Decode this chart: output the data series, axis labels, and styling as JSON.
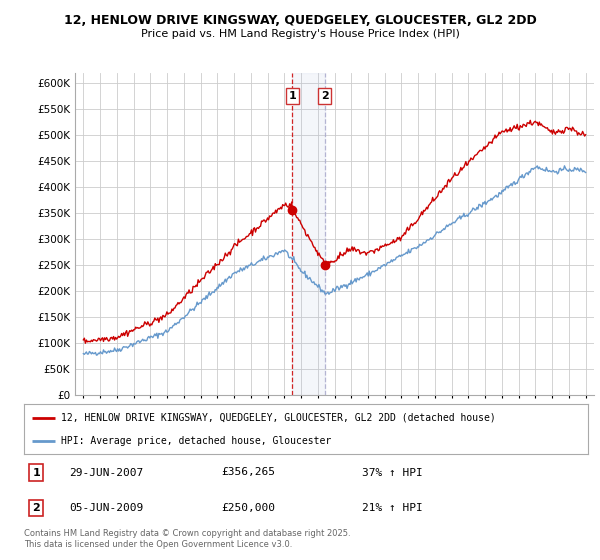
{
  "title1": "12, HENLOW DRIVE KINGSWAY, QUEDGELEY, GLOUCESTER, GL2 2DD",
  "title2": "Price paid vs. HM Land Registry's House Price Index (HPI)",
  "legend_line1": "12, HENLOW DRIVE KINGSWAY, QUEDGELEY, GLOUCESTER, GL2 2DD (detached house)",
  "legend_line2": "HPI: Average price, detached house, Gloucester",
  "transaction1_date": "29-JUN-2007",
  "transaction1_price": "£356,265",
  "transaction1_hpi": "37% ↑ HPI",
  "transaction1_year": 2007.49,
  "transaction1_price_val": 356265,
  "transaction2_date": "05-JUN-2009",
  "transaction2_price": "£250,000",
  "transaction2_hpi": "21% ↑ HPI",
  "transaction2_year": 2009.42,
  "transaction2_price_val": 250000,
  "red_color": "#cc0000",
  "blue_color": "#6699cc",
  "background_color": "#ffffff",
  "grid_color": "#cccccc",
  "footer_text": "Contains HM Land Registry data © Crown copyright and database right 2025.\nThis data is licensed under the Open Government Licence v3.0.",
  "ylim_min": 0,
  "ylim_max": 620000,
  "yticks": [
    0,
    50000,
    100000,
    150000,
    200000,
    250000,
    300000,
    350000,
    400000,
    450000,
    500000,
    550000,
    600000
  ],
  "xlim_min": 1994.5,
  "xlim_max": 2025.5
}
